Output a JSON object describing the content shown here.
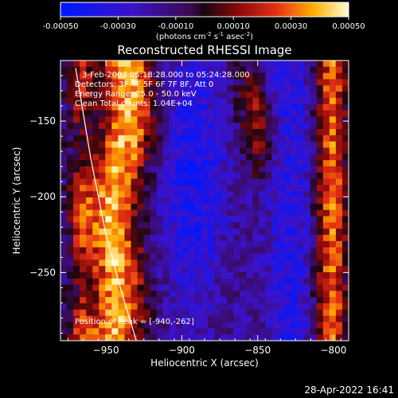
{
  "colorbar": {
    "min": -0.0005,
    "max": 0.0005,
    "tick_labels": [
      "-0.00050",
      "-0.00030",
      "-0.00010",
      "0.00010",
      "0.00030",
      "0.00050"
    ],
    "tick_values": [
      -0.0005,
      -0.0003,
      -0.0001,
      0.0001,
      0.0003,
      0.0005
    ],
    "unit_label": "(photons cm",
    "unit_exp1": "-2",
    "unit_mid1": " s",
    "unit_exp2": "-1",
    "unit_mid2": " asec",
    "unit_exp3": "-2",
    "unit_close": ")"
  },
  "chart_data": {
    "type": "heatmap",
    "title": "Reconstructed RHESSI Image",
    "xlabel": "Heliocentric X (arcsec)",
    "ylabel": "Heliocentric Y (arcsec)",
    "xlim": [
      -980,
      -790
    ],
    "ylim": [
      -295,
      -110
    ],
    "xticks": [
      -950,
      -900,
      -850,
      -800
    ],
    "yticks": [
      -150,
      -200,
      -250
    ],
    "xtick_labels": [
      "−950",
      "−900",
      "−850",
      "−800"
    ],
    "ytick_labels": [
      "−150",
      "−200",
      "−250"
    ],
    "annotations": {
      "time": "3-Feb-2003 05:18:28.000 to 05:24:28.000",
      "detectors": "Detectors: 3F 4F 5F 6F 7F 8F, Att 0",
      "energy": "Energy Range: 25.0 - 50.0 keV",
      "clean": "Clean    Total counts: 1.04E+04",
      "peak": "Position of Peak = [-940,-262]"
    },
    "peak_position": [
      -940,
      -262
    ],
    "limb_curve": [
      [
        -970,
        -115
      ],
      [
        -960,
        -175
      ],
      [
        -950,
        -225
      ],
      [
        -940,
        -262
      ],
      [
        -930,
        -295
      ]
    ]
  },
  "footer": {
    "date": "28-Apr-2022 16:41"
  }
}
